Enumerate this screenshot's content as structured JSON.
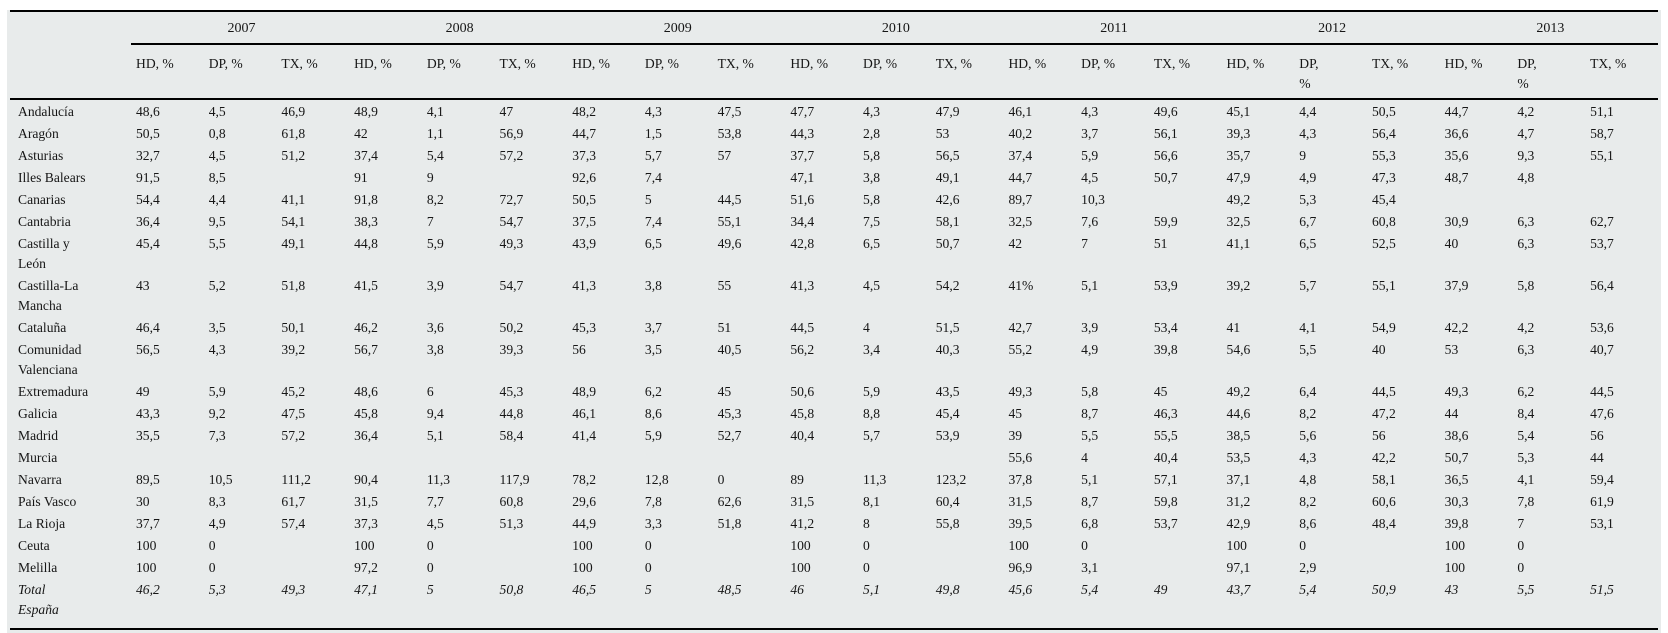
{
  "colors": {
    "panel_bg": "#e8ebeb",
    "rule": "#000000",
    "text": "#161616"
  },
  "table": {
    "years": [
      "2007",
      "2008",
      "2009",
      "2010",
      "2011",
      "2012",
      "2013"
    ],
    "col_headers": [
      "HD, %",
      "DP, %",
      "TX, %"
    ],
    "narrow_dp_year_indexes": [
      5,
      6
    ],
    "rows": [
      {
        "region": "Andalucía",
        "italic": false,
        "values": [
          "48,6",
          "4,5",
          "46,9",
          "48,9",
          "4,1",
          "47",
          "48,2",
          "4,3",
          "47,5",
          "47,7",
          "4,3",
          "47,9",
          "46,1",
          "4,3",
          "49,6",
          "45,1",
          "4,4",
          "50,5",
          "44,7",
          "4,2",
          "51,1"
        ]
      },
      {
        "region": "Aragón",
        "italic": false,
        "values": [
          "50,5",
          "0,8",
          "61,8",
          "42",
          "1,1",
          "56,9",
          "44,7",
          "1,5",
          "53,8",
          "44,3",
          "2,8",
          "53",
          "40,2",
          "3,7",
          "56,1",
          "39,3",
          "4,3",
          "56,4",
          "36,6",
          "4,7",
          "58,7"
        ]
      },
      {
        "region": "Asturias",
        "italic": false,
        "values": [
          "32,7",
          "4,5",
          "51,2",
          "37,4",
          "5,4",
          "57,2",
          "37,3",
          "5,7",
          "57",
          "37,7",
          "5,8",
          "56,5",
          "37,4",
          "5,9",
          "56,6",
          "35,7",
          "9",
          "55,3",
          "35,6",
          "9,3",
          "55,1"
        ]
      },
      {
        "region": "Illes Balears",
        "italic": false,
        "values": [
          "91,5",
          "8,5",
          "",
          "91",
          "9",
          "",
          "92,6",
          "7,4",
          "",
          "47,1",
          "3,8",
          "49,1",
          "44,7",
          "4,5",
          "50,7",
          "47,9",
          "4,9",
          "47,3",
          "48,7",
          "4,8",
          ""
        ]
      },
      {
        "region": "Canarias",
        "italic": false,
        "values": [
          "54,4",
          "4,4",
          "41,1",
          "91,8",
          "8,2",
          "72,7",
          "50,5",
          "5",
          "44,5",
          "51,6",
          "5,8",
          "42,6",
          "89,7",
          "10,3",
          "",
          "49,2",
          "5,3",
          "45,4",
          "",
          "",
          ""
        ]
      },
      {
        "region": "Cantabria",
        "italic": false,
        "values": [
          "36,4",
          "9,5",
          "54,1",
          "38,3",
          "7",
          "54,7",
          "37,5",
          "7,4",
          "55,1",
          "34,4",
          "7,5",
          "58,1",
          "32,5",
          "7,6",
          "59,9",
          "32,5",
          "6,7",
          "60,8",
          "30,9",
          "6,3",
          "62,7"
        ]
      },
      {
        "region": "Castilla y León",
        "italic": false,
        "values": [
          "45,4",
          "5,5",
          "49,1",
          "44,8",
          "5,9",
          "49,3",
          "43,9",
          "6,5",
          "49,6",
          "42,8",
          "6,5",
          "50,7",
          "42",
          "7",
          "51",
          "41,1",
          "6,5",
          "52,5",
          "40",
          "6,3",
          "53,7"
        ]
      },
      {
        "region": "Castilla-La Mancha",
        "italic": false,
        "values": [
          "43",
          "5,2",
          "51,8",
          "41,5",
          "3,9",
          "54,7",
          "41,3",
          "3,8",
          "55",
          "41,3",
          "4,5",
          "54,2",
          "41%",
          "5,1",
          "53,9",
          "39,2",
          "5,7",
          "55,1",
          "37,9",
          "5,8",
          "56,4"
        ]
      },
      {
        "region": "Cataluña",
        "italic": false,
        "values": [
          "46,4",
          "3,5",
          "50,1",
          "46,2",
          "3,6",
          "50,2",
          "45,3",
          "3,7",
          "51",
          "44,5",
          "4",
          "51,5",
          "42,7",
          "3,9",
          "53,4",
          "41",
          "4,1",
          "54,9",
          "42,2",
          "4,2",
          "53,6"
        ]
      },
      {
        "region": "Comunidad Valenciana",
        "italic": false,
        "values": [
          "56,5",
          "4,3",
          "39,2",
          "56,7",
          "3,8",
          "39,3",
          "56",
          "3,5",
          "40,5",
          "56,2",
          "3,4",
          "40,3",
          "55,2",
          "4,9",
          "39,8",
          "54,6",
          "5,5",
          "40",
          "53",
          "6,3",
          "40,7"
        ]
      },
      {
        "region": "Extremadura",
        "italic": false,
        "values": [
          "49",
          "5,9",
          "45,2",
          "48,6",
          "6",
          "45,3",
          "48,9",
          "6,2",
          "45",
          "50,6",
          "5,9",
          "43,5",
          "49,3",
          "5,8",
          "45",
          "49,2",
          "6,4",
          "44,5",
          "49,3",
          "6,2",
          "44,5"
        ]
      },
      {
        "region": "Galicia",
        "italic": false,
        "values": [
          "43,3",
          "9,2",
          "47,5",
          "45,8",
          "9,4",
          "44,8",
          "46,1",
          "8,6",
          "45,3",
          "45,8",
          "8,8",
          "45,4",
          "45",
          "8,7",
          "46,3",
          "44,6",
          "8,2",
          "47,2",
          "44",
          "8,4",
          "47,6"
        ]
      },
      {
        "region": "Madrid",
        "italic": false,
        "values": [
          "35,5",
          "7,3",
          "57,2",
          "36,4",
          "5,1",
          "58,4",
          "41,4",
          "5,9",
          "52,7",
          "40,4",
          "5,7",
          "53,9",
          "39",
          "5,5",
          "55,5",
          "38,5",
          "5,6",
          "56",
          "38,6",
          "5,4",
          "56"
        ]
      },
      {
        "region": "Murcia",
        "italic": false,
        "values": [
          "",
          "",
          "",
          "",
          "",
          "",
          "",
          "",
          "",
          "",
          "",
          "",
          "55,6",
          "4",
          "40,4",
          "53,5",
          "4,3",
          "42,2",
          "50,7",
          "5,3",
          "44"
        ]
      },
      {
        "region": "Navarra",
        "italic": false,
        "values": [
          "89,5",
          "10,5",
          "111,2",
          "90,4",
          "11,3",
          "117,9",
          "78,2",
          "12,8",
          "0",
          "89",
          "11,3",
          "123,2",
          "37,8",
          "5,1",
          "57,1",
          "37,1",
          "4,8",
          "58,1",
          "36,5",
          "4,1",
          "59,4"
        ]
      },
      {
        "region": "País Vasco",
        "italic": false,
        "values": [
          "30",
          "8,3",
          "61,7",
          "31,5",
          "7,7",
          "60,8",
          "29,6",
          "7,8",
          "62,6",
          "31,5",
          "8,1",
          "60,4",
          "31,5",
          "8,7",
          "59,8",
          "31,2",
          "8,2",
          "60,6",
          "30,3",
          "7,8",
          "61,9"
        ]
      },
      {
        "region": "La Rioja",
        "italic": false,
        "values": [
          "37,7",
          "4,9",
          "57,4",
          "37,3",
          "4,5",
          "51,3",
          "44,9",
          "3,3",
          "51,8",
          "41,2",
          "8",
          "55,8",
          "39,5",
          "6,8",
          "53,7",
          "42,9",
          "8,6",
          "48,4",
          "39,8",
          "7",
          "53,1"
        ]
      },
      {
        "region": "Ceuta",
        "italic": false,
        "values": [
          "100",
          "0",
          "",
          "100",
          "0",
          "",
          "100",
          "0",
          "",
          "100",
          "0",
          "",
          "100",
          "0",
          "",
          "100",
          "0",
          "",
          "100",
          "0",
          ""
        ]
      },
      {
        "region": "Melilla",
        "italic": false,
        "values": [
          "100",
          "0",
          "",
          "97,2",
          "0",
          "",
          "100",
          "0",
          "",
          "100",
          "0",
          "",
          "96,9",
          "3,1",
          "",
          "97,1",
          "2,9",
          "",
          "100",
          "0",
          ""
        ]
      },
      {
        "region": "Total España",
        "italic": true,
        "values": [
          "46,2",
          "5,3",
          "49,3",
          "47,1",
          "5",
          "50,8",
          "46,5",
          "5",
          "48,5",
          "46",
          "5,1",
          "49,8",
          "45,6",
          "5,4",
          "49",
          "43,7",
          "5,4",
          "50,9",
          "43",
          "5,5",
          "51,5"
        ]
      }
    ]
  }
}
